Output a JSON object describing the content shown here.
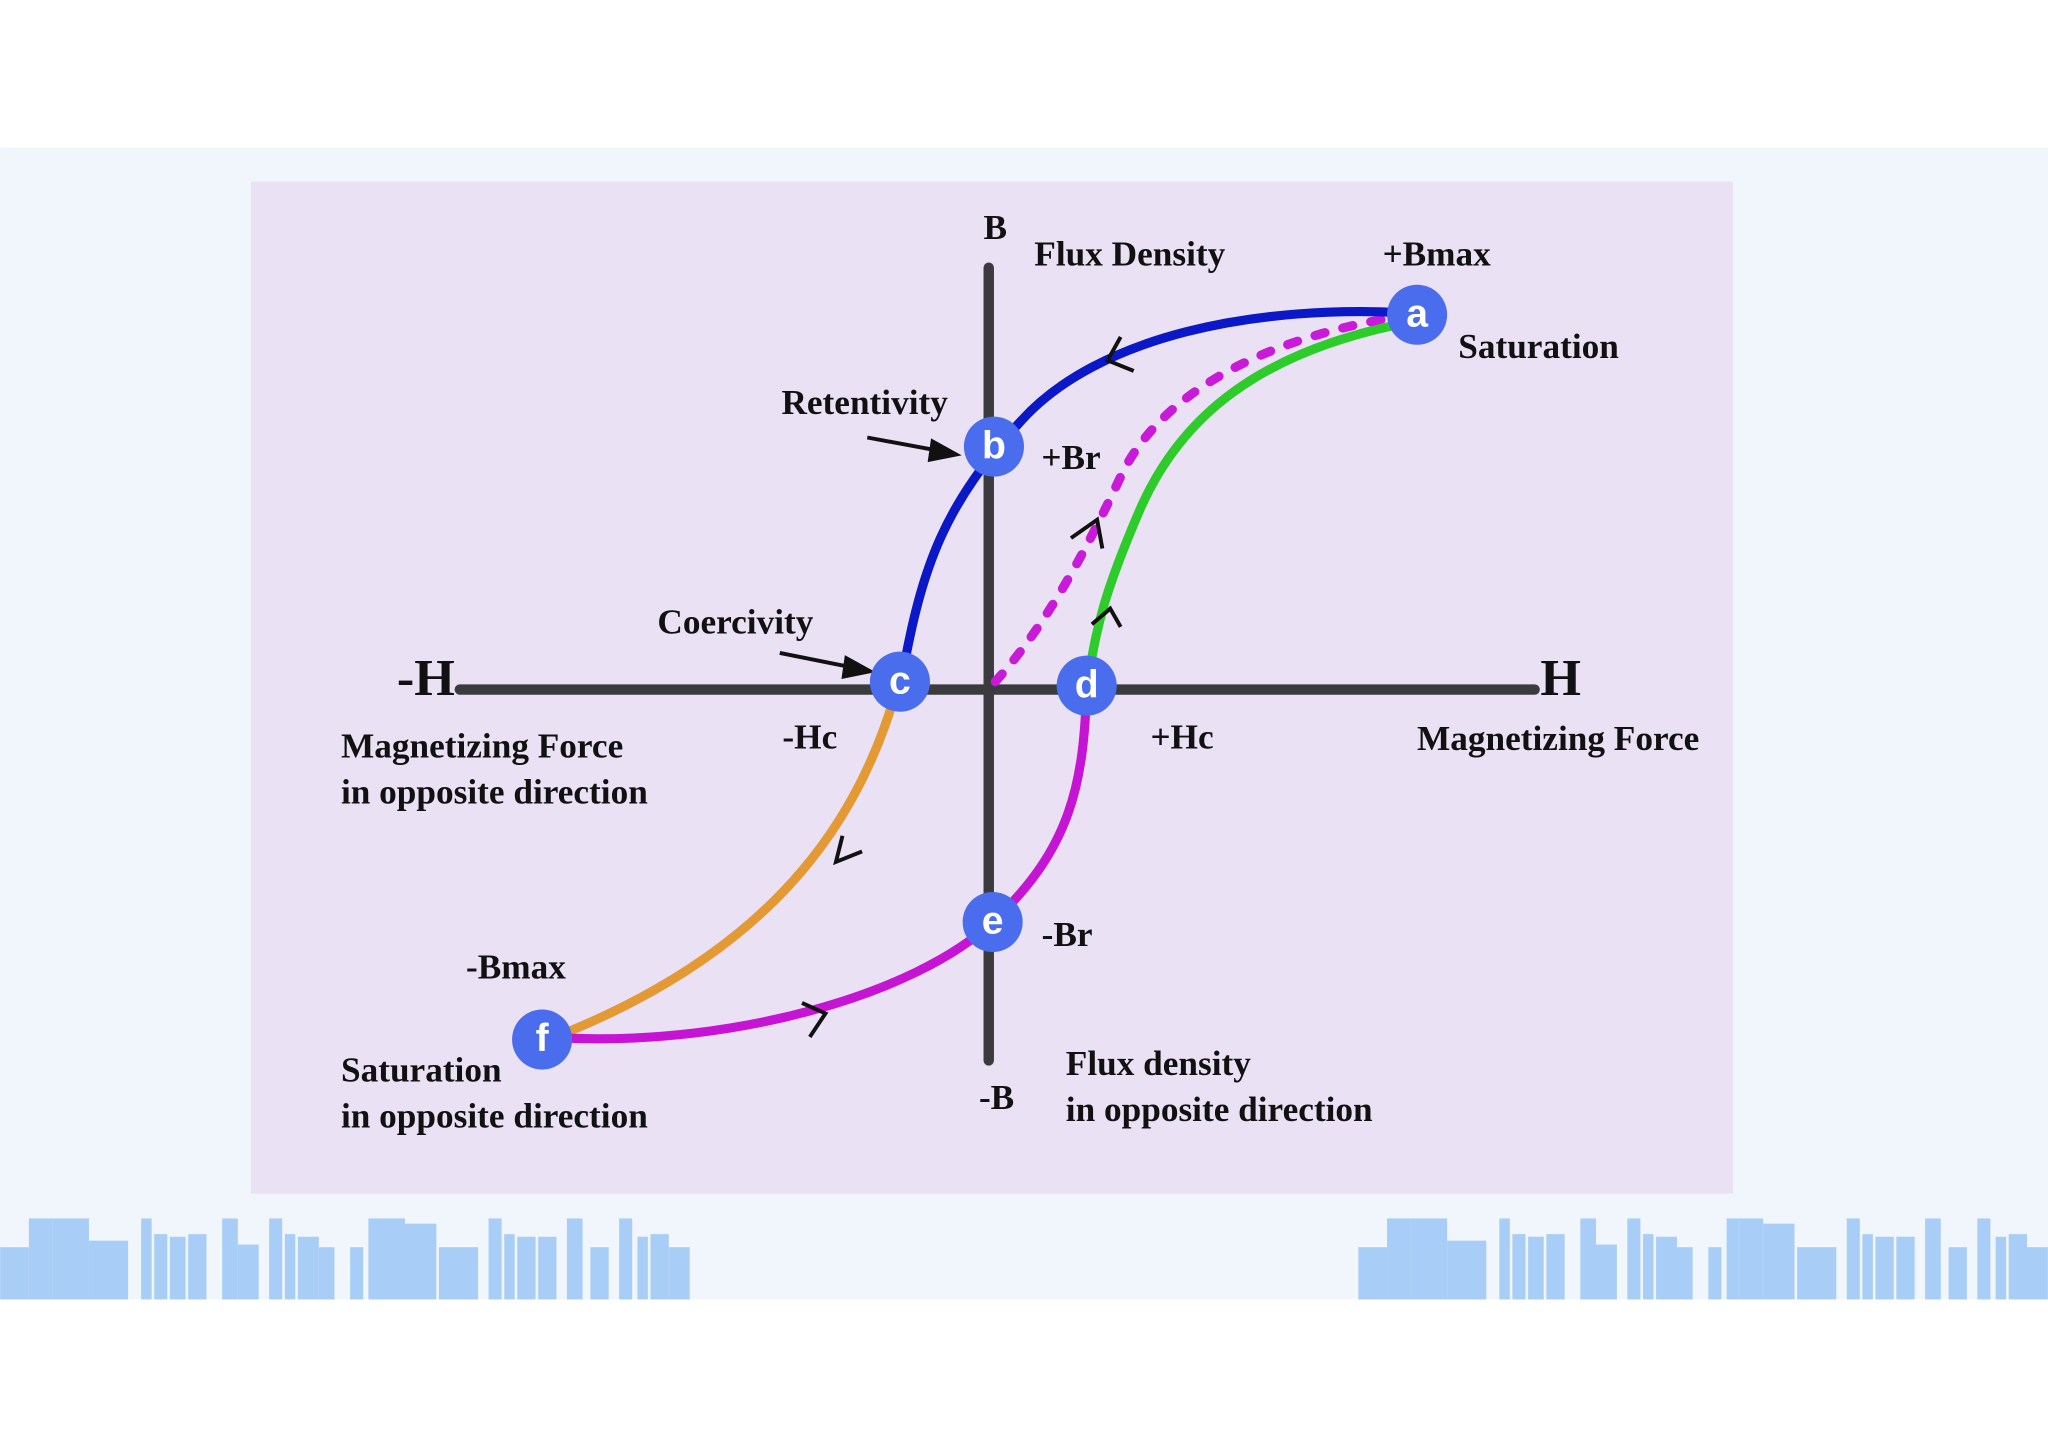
{
  "nodes": [
    "a",
    "b",
    "c",
    "d",
    "e",
    "f"
  ],
  "labels": [
    "B",
    "Flux Density",
    "+Bmax",
    "Saturation",
    "Retentivity",
    "+Br",
    "Coercivity",
    "-H",
    "H",
    "Magnetizing Force",
    "-Hc",
    "+Hc",
    "Magnetizing Force",
    "in opposite direction",
    "-Br",
    "-Bmax",
    "Saturation",
    "in opposite direction",
    "-B",
    "Flux density",
    "in opposite direction"
  ]
}
